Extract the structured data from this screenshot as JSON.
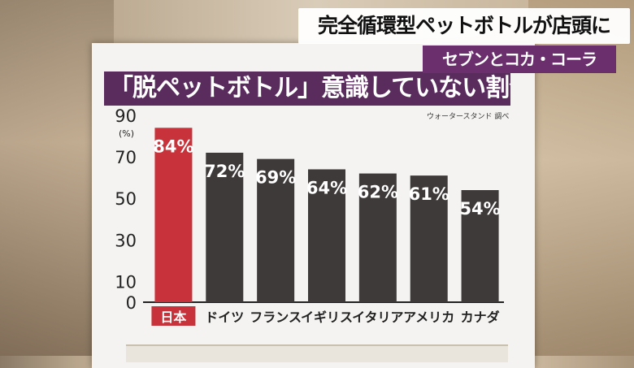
{
  "caption": {
    "headline": "完全循環型ペットボトルが店頭に",
    "subhead": "セブンとコカ・コーラ"
  },
  "board": {
    "title": "「脱ペットボトル」意識していない割合",
    "source": "ウォータースタンド 調べ"
  },
  "colors": {
    "highlight_bar": "#c8323a",
    "bar": "#3f3a3a",
    "title_bg": "#5a2c5e",
    "subhead_bg": "#6a2f6c"
  },
  "chart_data": {
    "type": "bar",
    "title": "「脱ペットボトル」意識していない割合",
    "categories": [
      "日本",
      "ドイツ",
      "フランス",
      "イギリス",
      "イタリア",
      "アメリカ",
      "カナダ"
    ],
    "values": [
      84,
      72,
      69,
      64,
      62,
      61,
      54
    ],
    "value_labels": [
      "84%",
      "72%",
      "69%",
      "64%",
      "62%",
      "61%",
      "54%"
    ],
    "highlight_index": 0,
    "ylim": [
      0,
      90
    ],
    "yticks": [
      0,
      10,
      30,
      50,
      70,
      90
    ],
    "ytick_labels": [
      "0",
      "10",
      "30",
      "50",
      "70",
      "90"
    ],
    "yunit": "(%)",
    "xlabel": "",
    "ylabel": "",
    "grid": false
  }
}
